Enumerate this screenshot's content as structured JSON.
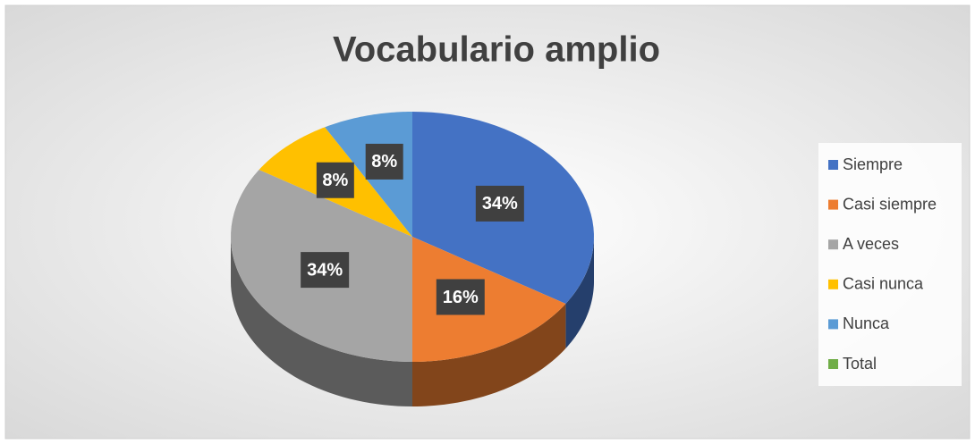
{
  "chart_data": {
    "type": "pie",
    "title": "Vocabulario amplio",
    "categories": [
      "Siempre",
      "Casi siempre",
      "A veces",
      "Casi nunca",
      "Nunca",
      "Total"
    ],
    "values": [
      34,
      16,
      34,
      8,
      8,
      null
    ],
    "value_labels": [
      "34%",
      "16%",
      "34%",
      "8%",
      "8%",
      null
    ],
    "colors": [
      "#4472c4",
      "#ed7d31",
      "#a5a5a5",
      "#ffc000",
      "#5b9bd5",
      "#70ad47"
    ],
    "legend": "right"
  }
}
